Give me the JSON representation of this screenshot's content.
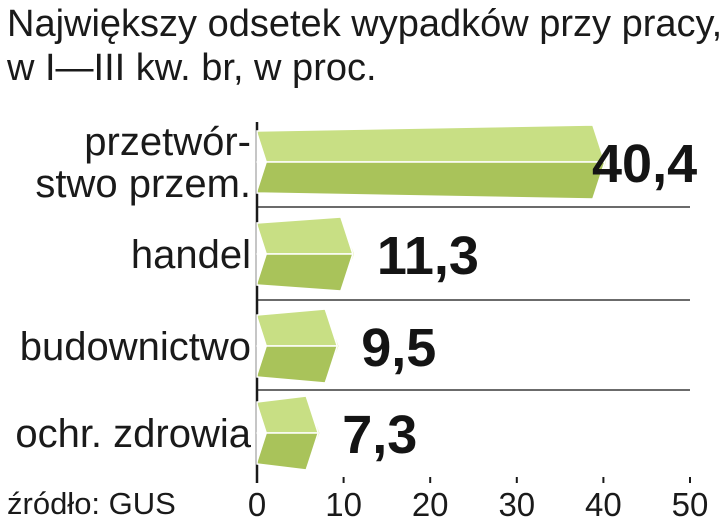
{
  "chart_data": {
    "type": "bar",
    "orientation": "horizontal",
    "title": [
      "Największy odsetek wypadków przy pracy,",
      "w I—III kw. br, w proc."
    ],
    "categories": [
      [
        "przetwór-",
        "stwo przem."
      ],
      [
        "handel"
      ],
      [
        "budownictwo"
      ],
      [
        "ochr. zdrowia"
      ]
    ],
    "values": [
      40.4,
      11.3,
      9.5,
      7.3
    ],
    "value_labels": [
      "40,4",
      "11,3",
      "9,5",
      "7,3"
    ],
    "xlim": [
      0,
      50
    ],
    "xticks": [
      0,
      10,
      20,
      30,
      40,
      50
    ],
    "xtick_labels": [
      "0",
      "10",
      "20",
      "30",
      "40",
      "50"
    ],
    "grid": true,
    "source": "źródło: GUS",
    "colors": {
      "bar_top": "#c8df84",
      "bar_bottom": "#a9c35a",
      "bar_end": "#dceaa4",
      "bar_edge": "#ffffff",
      "grid": "#3a3a3a",
      "axis": "#1a1a1a"
    }
  }
}
